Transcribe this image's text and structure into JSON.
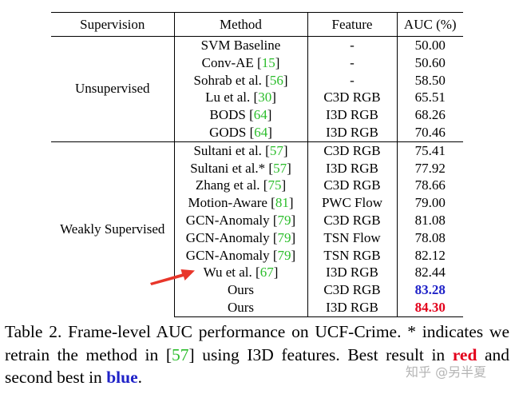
{
  "table": {
    "headers": [
      "Supervision",
      "Method",
      "Feature",
      "AUC (%)"
    ],
    "groups": [
      {
        "supervision": "Unsupervised",
        "rows": [
          {
            "method": "SVM Baseline",
            "ref": "",
            "feature": "-",
            "auc": "50.00"
          },
          {
            "method": "Conv-AE [",
            "ref": "15",
            "feature": "-",
            "auc": "50.60"
          },
          {
            "method": "Sohrab et al. [",
            "ref": "56",
            "feature": "-",
            "auc": "58.50"
          },
          {
            "method": "Lu et al. [",
            "ref": "30",
            "feature": "C3D RGB",
            "auc": "65.51"
          },
          {
            "method": "BODS [",
            "ref": "64",
            "feature": "I3D RGB",
            "auc": "68.26"
          },
          {
            "method": "GODS [",
            "ref": "64",
            "feature": "I3D RGB",
            "auc": "70.46"
          }
        ]
      },
      {
        "supervision": "Weakly Supervised",
        "rows": [
          {
            "method": "Sultani et al. [",
            "ref": "57",
            "feature": "C3D RGB",
            "auc": "75.41"
          },
          {
            "method": "Sultani et al.* [",
            "ref": "57",
            "feature": "I3D RGB",
            "auc": "77.92"
          },
          {
            "method": "Zhang et al. [",
            "ref": "75",
            "feature": "C3D RGB",
            "auc": "78.66"
          },
          {
            "method": "Motion-Aware [",
            "ref": "81",
            "feature": "PWC Flow",
            "auc": "79.00"
          },
          {
            "method": "GCN-Anomaly [",
            "ref": "79",
            "feature": "C3D RGB",
            "auc": "81.08"
          },
          {
            "method": "GCN-Anomaly [",
            "ref": "79",
            "feature": "TSN Flow",
            "auc": "78.08"
          },
          {
            "method": "GCN-Anomaly [",
            "ref": "79",
            "feature": "TSN RGB",
            "auc": "82.12"
          },
          {
            "method": "Wu et al. [",
            "ref": "67",
            "feature": "I3D RGB",
            "auc": "82.44"
          },
          {
            "method": "Ours",
            "ref": "",
            "feature": "C3D RGB",
            "auc": "83.28"
          },
          {
            "method": "Ours",
            "ref": "",
            "feature": "I3D RGB",
            "auc": "84.30"
          }
        ]
      }
    ],
    "close_bracket": "]"
  },
  "caption": {
    "part1": "Table 2. Frame-level AUC performance on UCF-Crime.  * indicates we retrain the method in [",
    "ref": "57",
    "part2": "] using I3D features. Best result in ",
    "red_word": "red",
    "part3": " and second best in ",
    "blue_word": "blue",
    "part4": "."
  },
  "watermark": "知乎 @另半夏",
  "colors": {
    "best": "#e3001b",
    "second": "#1f22c8",
    "reference": "#2bbd2b",
    "arrow": "#e8362a"
  },
  "icons": {
    "pointer": "red-arrow-icon"
  }
}
